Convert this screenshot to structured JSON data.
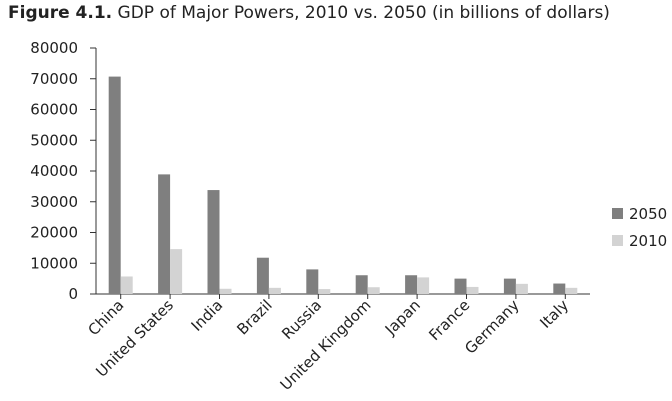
{
  "title": {
    "figure": "Figure 4.1.",
    "text": "GDP of Major Powers, 2010 vs. 2050 (in billions of dollars)"
  },
  "colors": {
    "series_2050": "#7f7f7f",
    "series_2010": "#d3d3d3",
    "axis": "#333333"
  },
  "chart_data": {
    "type": "bar",
    "title": "GDP of Major Powers, 2010 vs. 2050 (in billions of dollars)",
    "xlabel": "",
    "ylabel": "",
    "ylim": [
      0,
      80000
    ],
    "yticks": [
      0,
      10000,
      20000,
      30000,
      40000,
      50000,
      60000,
      70000,
      80000
    ],
    "categories": [
      "China",
      "United States",
      "India",
      "Brazil",
      "Russia",
      "United Kingdom",
      "Japan",
      "France",
      "Germany",
      "Italy"
    ],
    "series": [
      {
        "name": "2050",
        "values": [
          70700,
          38900,
          33800,
          11800,
          8000,
          6100,
          6100,
          5000,
          5000,
          3400
        ]
      },
      {
        "name": "2010",
        "values": [
          5700,
          14600,
          1700,
          2000,
          1600,
          2200,
          5400,
          2300,
          3300,
          2000
        ]
      }
    ],
    "legend": "right",
    "grid": false
  }
}
